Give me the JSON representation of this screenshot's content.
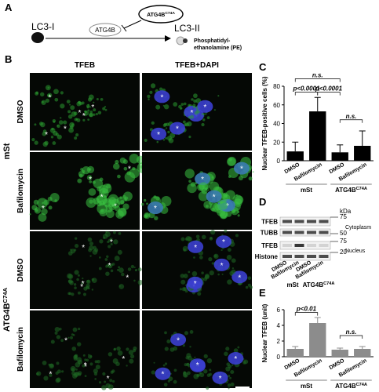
{
  "panel_a": {
    "letter": "A",
    "lc3_i": "LC3-I",
    "atg4b": "ATG4B",
    "mutant": {
      "base": "ATG4B",
      "sup": "C74A"
    },
    "lc3_ii": "LC3-II",
    "pe": [
      "Phosphatidyl-",
      "ethanolamine (PE)"
    ]
  },
  "panel_b": {
    "letter": "B",
    "columns": [
      "TFEB",
      "TFEB+DAPI"
    ],
    "rows": [
      "DMSO",
      "Bafilomycin",
      "DMSO",
      "Bafilomycin"
    ],
    "groups": [
      {
        "base": "mSt"
      },
      {
        "base": "ATG4B",
        "sup": "C74A"
      }
    ],
    "marker": "*"
  },
  "panel_d": {
    "letter": "D",
    "unit": "kDa",
    "bands": [
      "TFEB",
      "TUBB",
      "TFEB",
      "Histone"
    ],
    "markers": [
      75,
      50,
      75,
      20
    ],
    "fractions": [
      "Cytoplasm",
      "Nucleus"
    ],
    "lanes": [
      "DMSO",
      "Bafilomycin",
      "DMSO",
      "Bafilomycin"
    ],
    "groups": [
      {
        "base": "mSt"
      },
      {
        "base": "ATG4B",
        "sup": "C74A"
      }
    ]
  },
  "chart_data": [
    {
      "type": "bar",
      "letter": "C",
      "ylabel": "Nuclear TFEB-positive cells (%)",
      "categories": [
        "DMSO",
        "Bafilomycin",
        "DMSO",
        "Bafilomycin"
      ],
      "groups": [
        {
          "base": "mSt"
        },
        {
          "base": "ATG4B",
          "sup": "C74A"
        }
      ],
      "values": [
        10,
        53,
        9,
        16
      ],
      "errors": [
        10,
        15,
        8,
        16
      ],
      "color": "#000000",
      "ylim": [
        0,
        80
      ],
      "yticks": [
        0,
        20,
        40,
        60,
        80
      ],
      "annotations": [
        "n.s.",
        "p<0.0001",
        "p<0.0001",
        "n.s."
      ]
    },
    {
      "type": "bar",
      "letter": "E",
      "ylabel": "Nuclear TFEB (unit)",
      "categories": [
        "DMSO",
        "Bafilomycin",
        "DMSO",
        "Bafilomycin"
      ],
      "groups": [
        {
          "base": "mSt"
        },
        {
          "base": "ATG4B",
          "sup": "C74A"
        }
      ],
      "values": [
        1,
        4.3,
        0.9,
        1.0
      ],
      "errors": [
        0.3,
        0.7,
        0.2,
        0.3
      ],
      "color": "#8c8c8c",
      "ylim": [
        0,
        6
      ],
      "yticks": [
        0,
        2,
        4,
        6
      ],
      "annotations": [
        "p<0.01",
        "n.s."
      ]
    }
  ]
}
